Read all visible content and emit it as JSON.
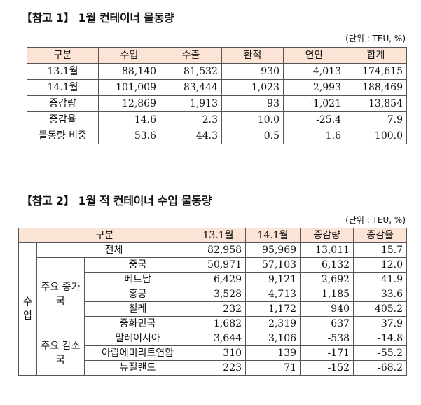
{
  "ref1": {
    "title": "【참고 1】 1월 컨테이너 물동량",
    "unit": "(단위 : TEU, %)",
    "headers": [
      "구분",
      "수입",
      "수출",
      "환적",
      "연안",
      "합계"
    ],
    "rows": [
      [
        "13.1월",
        "88,140",
        "81,532",
        "930",
        "4,013",
        "174,615"
      ],
      [
        "14.1월",
        "101,009",
        "83,444",
        "1,023",
        "2,993",
        "188,469"
      ],
      [
        "증감량",
        "12,869",
        "1,913",
        "93",
        "-1,021",
        "13,854"
      ],
      [
        "증감율",
        "14.6",
        "2.3",
        "10.0",
        "-25.4",
        "7.9"
      ],
      [
        "물동량 비중",
        "53.6",
        "44.3",
        "0.5",
        "1.6",
        "100.0"
      ]
    ]
  },
  "ref2": {
    "title": "【참고 2】 1월 적 컨테이너 수입 물동량",
    "unit": "(단위 : TEU, %)",
    "headers": [
      "구분",
      "13.1월",
      "14.1월",
      "증감량",
      "증감율"
    ],
    "import_label": "수입",
    "total_row": [
      "전체",
      "82,958",
      "95,969",
      "13,011",
      "15.7"
    ],
    "increase_group": {
      "label": "주요 증가국",
      "rows": [
        [
          "중국",
          "50,971",
          "57,103",
          "6,132",
          "12.0"
        ],
        [
          "베트남",
          "6,429",
          "9,121",
          "2,692",
          "41.9"
        ],
        [
          "홍콩",
          "3,528",
          "4,713",
          "1,185",
          "33.6"
        ],
        [
          "칠레",
          "232",
          "1,172",
          "940",
          "405.2"
        ],
        [
          "중화민국",
          "1,682",
          "2,319",
          "637",
          "37.9"
        ]
      ]
    },
    "decrease_group": {
      "label": "주요 감소국",
      "rows": [
        [
          "말레이시아",
          "3,644",
          "3,106",
          "-538",
          "-14.8"
        ],
        [
          "아랍에미리트연합",
          "310",
          "139",
          "-171",
          "-55.2"
        ],
        [
          "뉴질랜드",
          "223",
          "71",
          "-152",
          "-68.2"
        ]
      ]
    }
  }
}
